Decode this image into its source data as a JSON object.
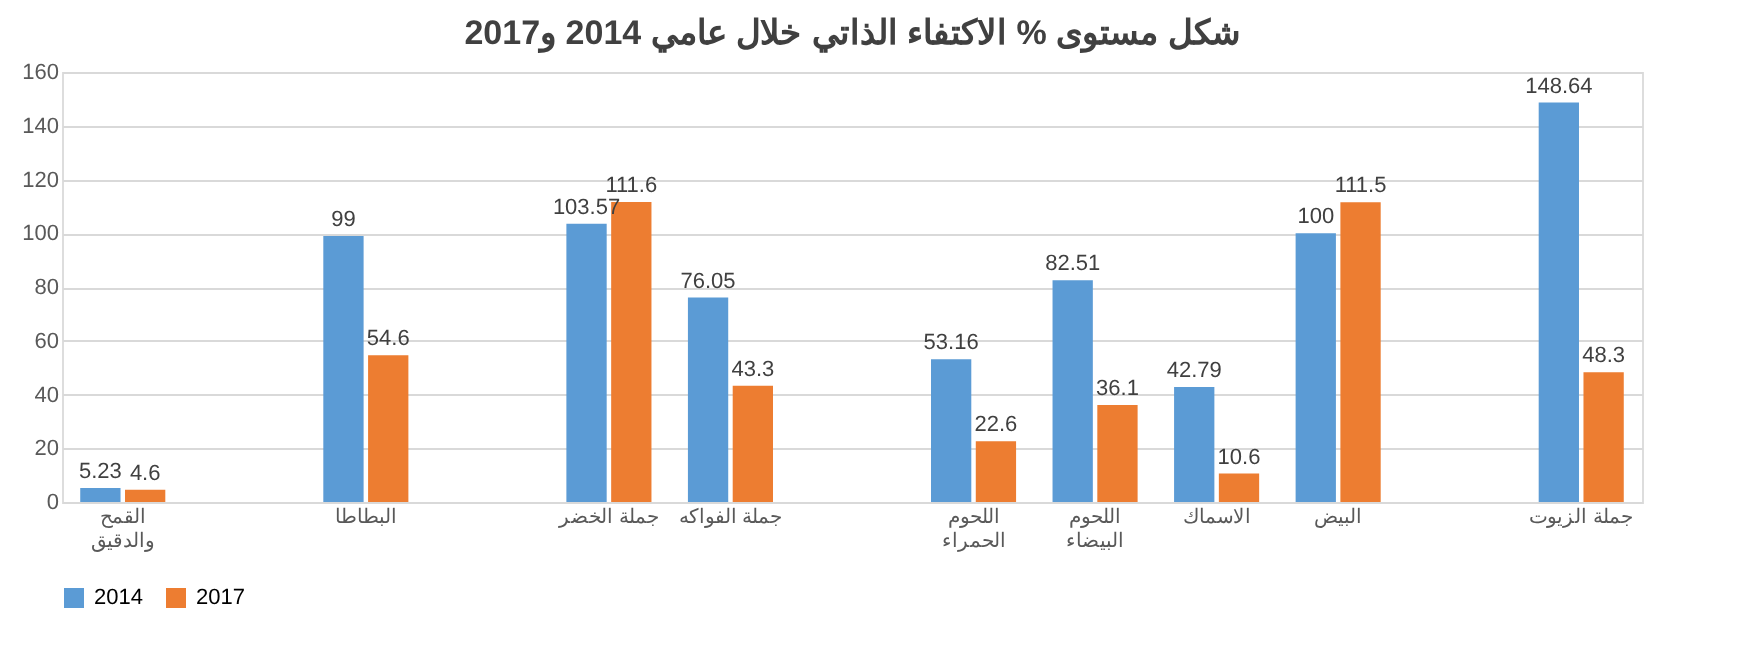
{
  "chart_data": {
    "type": "bar",
    "title": "شكل مستوى % الاكتفاء الذاتي خلال عامي 2014 و2017",
    "categories": [
      "القمح والدقيق",
      null,
      "البطاطا",
      null,
      "جملة الخضر",
      "جملة الفواكه",
      null,
      "اللحوم الحمراء",
      "اللحوم البيضاء",
      "الاسماك",
      "البيض",
      null,
      "جملة الزيوت"
    ],
    "series": [
      {
        "name": "2014",
        "color": "#5b9bd5",
        "values": [
          5.23,
          null,
          99,
          null,
          103.57,
          76.05,
          null,
          53.16,
          82.51,
          42.79,
          100,
          null,
          148.64
        ]
      },
      {
        "name": "2017",
        "color": "#ed7d31",
        "values": [
          4.6,
          null,
          54.6,
          null,
          111.6,
          43.3,
          null,
          22.6,
          36.1,
          10.6,
          111.5,
          null,
          48.3
        ]
      }
    ],
    "ylim": [
      0,
      160
    ],
    "yticks": [
      0,
      20,
      40,
      60,
      80,
      100,
      120,
      140,
      160
    ],
    "grid": "y",
    "legend": "bottom",
    "data_labels": true
  }
}
